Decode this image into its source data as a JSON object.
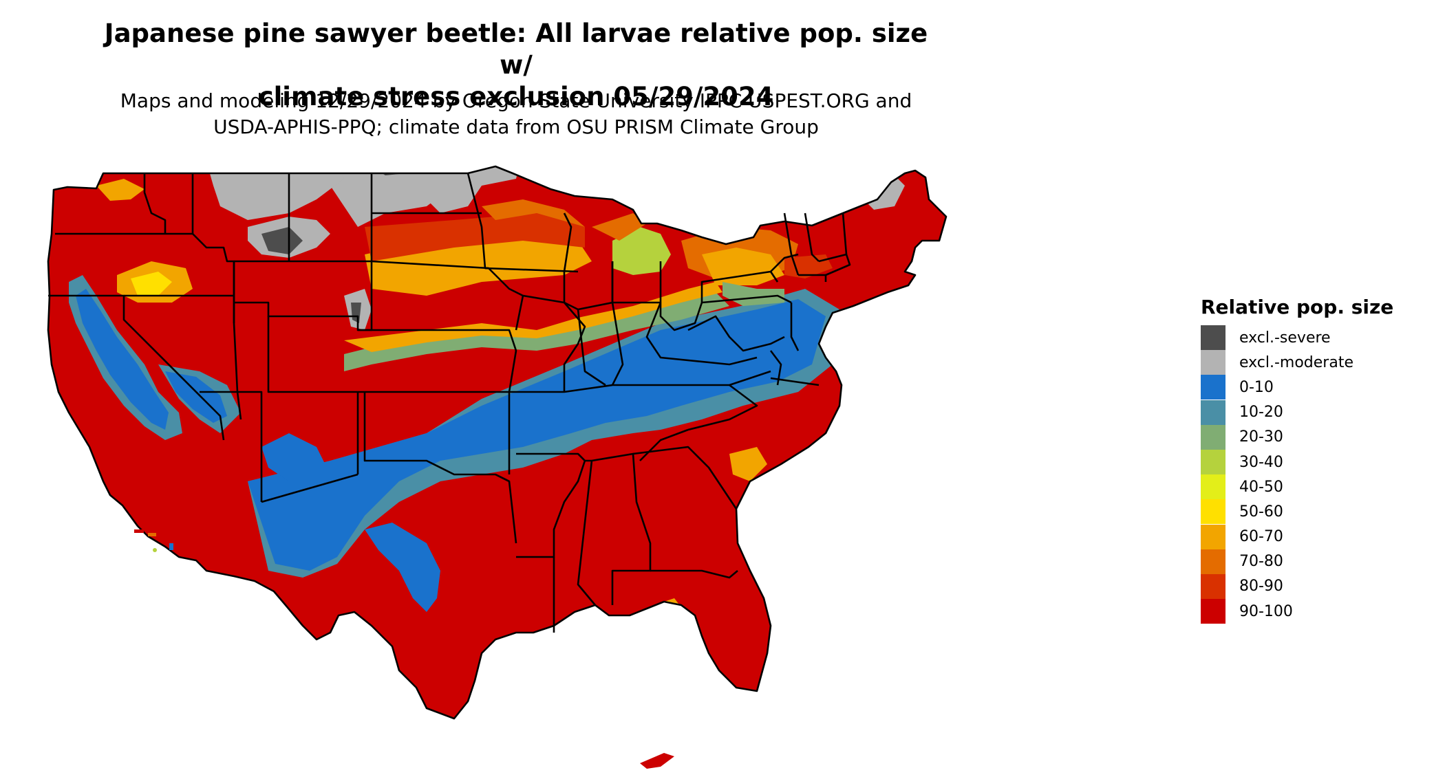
{
  "title_line1": "Japanese pine sawyer beetle: All larvae relative pop. size w/",
  "title_line2": "climate stress exclusion 05/29/2024",
  "subtitle_line1": "Maps and modeling 12/29/2024 by Oregon State University IPPC USPEST.ORG and",
  "subtitle_line2": "USDA-APHIS-PPQ; climate data from OSU PRISM Climate Group",
  "legend": {
    "title": "Relative pop. size",
    "items": [
      {
        "label": "excl.-severe",
        "color": "#4d4d4d"
      },
      {
        "label": "excl.-moderate",
        "color": "#b3b3b3"
      },
      {
        "label": "0-10",
        "color": "#1a72cc"
      },
      {
        "label": "10-20",
        "color": "#4a8fa6"
      },
      {
        "label": "20-30",
        "color": "#80ad73"
      },
      {
        "label": "30-40",
        "color": "#b5d23d"
      },
      {
        "label": "40-50",
        "color": "#e3ee19"
      },
      {
        "label": "50-60",
        "color": "#ffe000"
      },
      {
        "label": "60-70",
        "color": "#f2a500"
      },
      {
        "label": "70-80",
        "color": "#e46c00"
      },
      {
        "label": "80-90",
        "color": "#d93100"
      },
      {
        "label": "90-100",
        "color": "#cc0000"
      }
    ]
  }
}
